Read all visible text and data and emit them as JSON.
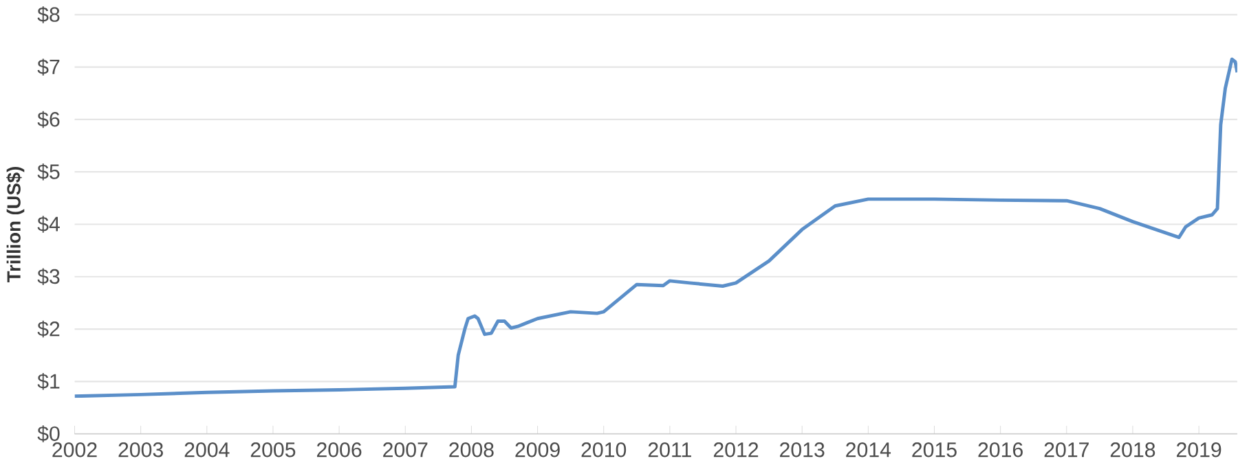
{
  "chart_data": {
    "type": "line",
    "ylabel": "Trillion (US$)",
    "grid": "y",
    "xlim": [
      2002,
      2019.58
    ],
    "ylim": [
      0,
      8
    ],
    "xticks": [
      2002,
      2003,
      2004,
      2005,
      2006,
      2007,
      2008,
      2009,
      2010,
      2011,
      2012,
      2013,
      2014,
      2015,
      2016,
      2017,
      2018,
      2019
    ],
    "yticks": [
      {
        "value": 0,
        "label": "$0"
      },
      {
        "value": 1,
        "label": "$1"
      },
      {
        "value": 2,
        "label": "$2"
      },
      {
        "value": 3,
        "label": "$3"
      },
      {
        "value": 4,
        "label": "$4"
      },
      {
        "value": 5,
        "label": "$5"
      },
      {
        "value": 6,
        "label": "$6"
      },
      {
        "value": 7,
        "label": "$7"
      },
      {
        "value": 8,
        "label": "$8"
      }
    ],
    "series": [
      {
        "color": "#5b8fc9",
        "x": [
          2002,
          2003,
          2004,
          2005,
          2006,
          2007,
          2007.75,
          2007.8,
          2007.9,
          2007.95,
          2008.05,
          2008.1,
          2008.2,
          2008.3,
          2008.4,
          2008.5,
          2008.6,
          2008.7,
          2009,
          2009.5,
          2009.9,
          2010,
          2010.5,
          2010.9,
          2011.0,
          2011.3,
          2011.8,
          2012,
          2012.5,
          2013,
          2013.5,
          2014,
          2015,
          2016,
          2017,
          2017.5,
          2018,
          2018.7,
          2018.8,
          2019,
          2019.2,
          2019.28,
          2019.33,
          2019.4,
          2019.5,
          2019.55,
          2019.58
        ],
        "values": [
          0.72,
          0.75,
          0.79,
          0.82,
          0.84,
          0.87,
          0.9,
          1.5,
          2.0,
          2.2,
          2.25,
          2.2,
          1.9,
          1.92,
          2.15,
          2.15,
          2.02,
          2.05,
          2.2,
          2.33,
          2.3,
          2.33,
          2.85,
          2.83,
          2.92,
          2.88,
          2.82,
          2.88,
          3.3,
          3.9,
          4.35,
          4.48,
          4.48,
          4.46,
          4.45,
          4.3,
          4.05,
          3.75,
          3.95,
          4.12,
          4.18,
          4.3,
          5.9,
          6.6,
          7.15,
          7.1,
          6.9
        ]
      }
    ]
  }
}
